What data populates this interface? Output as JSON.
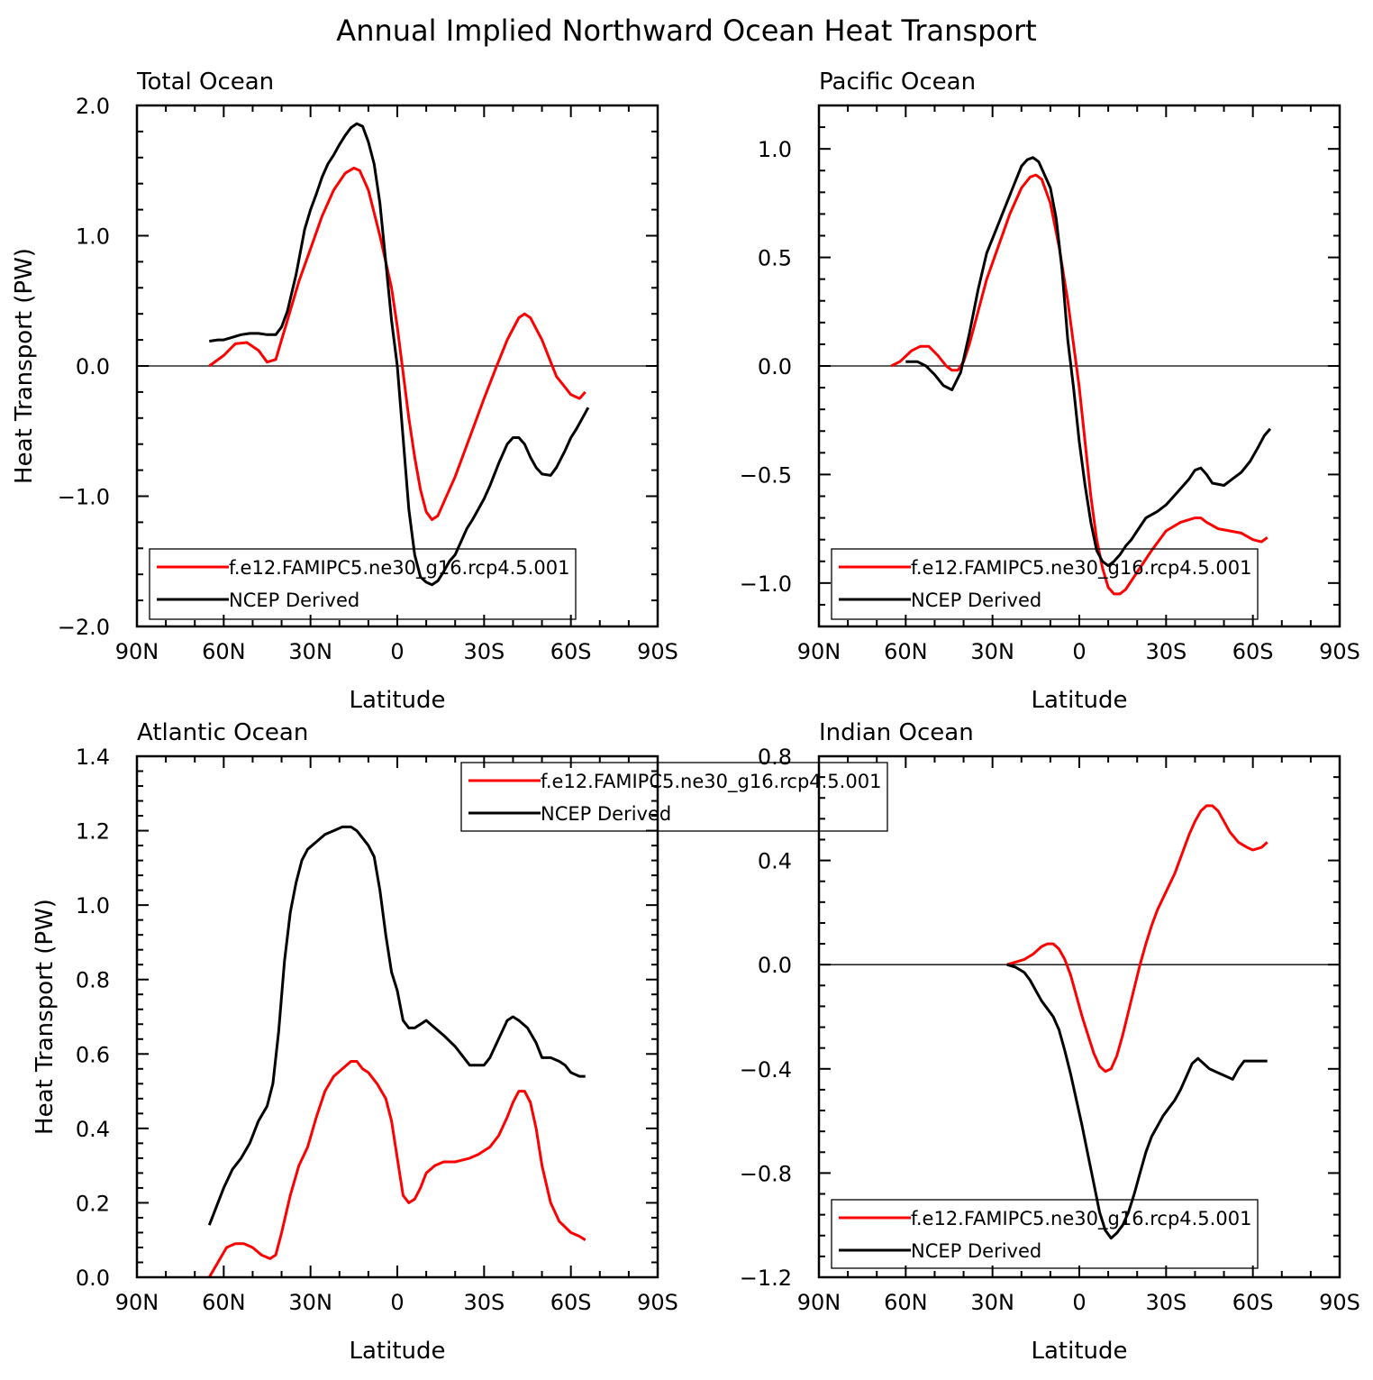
{
  "figure_title": "Annual Implied Northward Ocean Heat Transport",
  "chart_data": [
    {
      "type": "line",
      "title": "Total Ocean",
      "xlabel": "Latitude",
      "ylabel": "Heat Transport (PW)",
      "xlim": [
        90,
        -90
      ],
      "ylim": [
        -2.0,
        2.0
      ],
      "xticks": [
        90,
        60,
        30,
        0,
        -30,
        -60,
        -90
      ],
      "xtick_labels": [
        "90N",
        "60N",
        "30N",
        "0",
        "30S",
        "60S",
        "90S"
      ],
      "yticks": [
        -2.0,
        -1.0,
        0.0,
        1.0,
        2.0
      ],
      "ytick_labels": [
        "−2.0",
        "−1.0",
        "0.0",
        "1.0",
        "2.0"
      ],
      "zero_line": true,
      "legend_position": "bottom-left",
      "series": [
        {
          "name": "f.e12.FAMIPC5.ne30_g16.rcp4.5.001",
          "color": "#ff0000",
          "x": [
            65,
            60,
            56,
            52,
            48,
            45,
            42,
            38,
            34,
            30,
            26,
            22,
            18,
            15,
            13,
            10,
            6,
            2,
            0,
            -2,
            -4,
            -6,
            -8,
            -10,
            -12,
            -14,
            -16,
            -20,
            -25,
            -30,
            -34,
            -38,
            -42,
            -44,
            -46,
            -50,
            -55,
            -60,
            -63,
            -65
          ],
          "y": [
            0.0,
            0.08,
            0.17,
            0.18,
            0.12,
            0.03,
            0.05,
            0.35,
            0.65,
            0.9,
            1.15,
            1.35,
            1.48,
            1.52,
            1.5,
            1.35,
            1.0,
            0.6,
            0.3,
            -0.05,
            -0.4,
            -0.7,
            -0.95,
            -1.12,
            -1.18,
            -1.15,
            -1.05,
            -0.85,
            -0.55,
            -0.25,
            -0.02,
            0.2,
            0.37,
            0.4,
            0.37,
            0.2,
            -0.08,
            -0.22,
            -0.25,
            -0.2
          ]
        },
        {
          "name": "NCEP Derived",
          "color": "#000000",
          "x": [
            65,
            62,
            60,
            57,
            54,
            51,
            48,
            45,
            42,
            40,
            38,
            35,
            32,
            30,
            28,
            26,
            24,
            22,
            20,
            18,
            16,
            14,
            12,
            10,
            8,
            6,
            4,
            2,
            0,
            -2,
            -4,
            -6,
            -8,
            -10,
            -12,
            -14,
            -16,
            -18,
            -20,
            -22,
            -24,
            -26,
            -28,
            -30,
            -32,
            -35,
            -38,
            -40,
            -42,
            -44,
            -46,
            -48,
            -50,
            -53,
            -55,
            -58,
            -60,
            -62,
            -64,
            -66
          ],
          "y": [
            0.19,
            0.2,
            0.2,
            0.22,
            0.24,
            0.25,
            0.25,
            0.24,
            0.24,
            0.3,
            0.42,
            0.7,
            1.05,
            1.2,
            1.32,
            1.45,
            1.55,
            1.62,
            1.7,
            1.77,
            1.83,
            1.86,
            1.84,
            1.72,
            1.55,
            1.25,
            0.8,
            0.35,
            0.0,
            -0.55,
            -1.1,
            -1.45,
            -1.62,
            -1.66,
            -1.68,
            -1.65,
            -1.58,
            -1.5,
            -1.45,
            -1.35,
            -1.25,
            -1.18,
            -1.1,
            -1.02,
            -0.92,
            -0.75,
            -0.6,
            -0.55,
            -0.55,
            -0.6,
            -0.7,
            -0.78,
            -0.83,
            -0.84,
            -0.78,
            -0.65,
            -0.55,
            -0.48,
            -0.4,
            -0.32
          ]
        }
      ]
    },
    {
      "type": "line",
      "title": "Pacific Ocean",
      "xlabel": "Latitude",
      "ylabel": "",
      "xlim": [
        90,
        -90
      ],
      "ylim": [
        -1.2,
        1.2
      ],
      "xticks": [
        90,
        60,
        30,
        0,
        -30,
        -60,
        -90
      ],
      "xtick_labels": [
        "90N",
        "60N",
        "30N",
        "0",
        "30S",
        "60S",
        "90S"
      ],
      "yticks": [
        -1.0,
        -0.5,
        0.0,
        0.5,
        1.0
      ],
      "ytick_labels": [
        "−1.0",
        "−0.5",
        "0.0",
        "0.5",
        "1.0"
      ],
      "zero_line": true,
      "legend_position": "bottom-left",
      "series": [
        {
          "name": "f.e12.FAMIPC5.ne30_g16.rcp4.5.001",
          "color": "#ff0000",
          "x": [
            65,
            62,
            58,
            55,
            52,
            49,
            46,
            44,
            42,
            40,
            38,
            35,
            32,
            28,
            24,
            20,
            17,
            15,
            13,
            10,
            7,
            4,
            2,
            0,
            -2,
            -4,
            -6,
            -8,
            -10,
            -12,
            -14,
            -16,
            -20,
            -25,
            -30,
            -35,
            -40,
            -42,
            -44,
            -48,
            -52,
            -56,
            -60,
            -63,
            -65
          ],
          "y": [
            0.0,
            0.02,
            0.07,
            0.09,
            0.09,
            0.05,
            0.0,
            -0.02,
            -0.02,
            0.02,
            0.1,
            0.25,
            0.4,
            0.55,
            0.7,
            0.82,
            0.87,
            0.88,
            0.86,
            0.75,
            0.55,
            0.3,
            0.1,
            -0.1,
            -0.35,
            -0.6,
            -0.8,
            -0.93,
            -1.02,
            -1.05,
            -1.05,
            -1.03,
            -0.95,
            -0.85,
            -0.76,
            -0.72,
            -0.7,
            -0.7,
            -0.72,
            -0.75,
            -0.76,
            -0.77,
            -0.8,
            -0.81,
            -0.79
          ]
        },
        {
          "name": "NCEP Derived",
          "color": "#000000",
          "x": [
            60,
            56,
            53,
            50,
            47,
            44,
            41,
            38,
            35,
            32,
            29,
            26,
            23,
            20,
            18,
            16,
            14,
            12,
            10,
            8,
            6,
            4,
            2,
            0,
            -2,
            -4,
            -6,
            -8,
            -10,
            -12,
            -14,
            -16,
            -18,
            -20,
            -23,
            -27,
            -30,
            -34,
            -38,
            -40,
            -42,
            -44,
            -46,
            -50,
            -53,
            -56,
            -59,
            -62,
            -64,
            -66
          ],
          "y": [
            0.02,
            0.02,
            0.0,
            -0.04,
            -0.09,
            -0.11,
            -0.03,
            0.15,
            0.35,
            0.52,
            0.62,
            0.72,
            0.82,
            0.92,
            0.95,
            0.96,
            0.94,
            0.88,
            0.82,
            0.68,
            0.45,
            0.12,
            -0.1,
            -0.35,
            -0.55,
            -0.72,
            -0.85,
            -0.9,
            -0.92,
            -0.9,
            -0.87,
            -0.83,
            -0.8,
            -0.76,
            -0.7,
            -0.67,
            -0.64,
            -0.58,
            -0.52,
            -0.48,
            -0.47,
            -0.5,
            -0.54,
            -0.55,
            -0.52,
            -0.49,
            -0.44,
            -0.37,
            -0.32,
            -0.29
          ]
        }
      ]
    },
    {
      "type": "line",
      "title": "Atlantic Ocean",
      "xlabel": "Latitude",
      "ylabel": "Heat Transport (PW)",
      "xlim": [
        90,
        -90
      ],
      "ylim": [
        0.0,
        1.4
      ],
      "xticks": [
        90,
        60,
        30,
        0,
        -30,
        -60,
        -90
      ],
      "xtick_labels": [
        "90N",
        "60N",
        "30N",
        "0",
        "30S",
        "60S",
        "90S"
      ],
      "yticks": [
        0.0,
        0.2,
        0.4,
        0.6,
        0.8,
        1.0,
        1.2,
        1.4
      ],
      "ytick_labels": [
        "0.0",
        "0.2",
        "0.4",
        "0.6",
        "0.8",
        "1.0",
        "1.2",
        "1.4"
      ],
      "zero_line": false,
      "legend_position": "top-right",
      "series": [
        {
          "name": "f.e12.FAMIPC5.ne30_g16.rcp4.5.001",
          "color": "#ff0000",
          "x": [
            65,
            62,
            59,
            56,
            53,
            50,
            47,
            44,
            42,
            40,
            37,
            34,
            31,
            28,
            25,
            22,
            19,
            16,
            14,
            12,
            10,
            7,
            4,
            2,
            0,
            -2,
            -4,
            -6,
            -8,
            -10,
            -13,
            -16,
            -20,
            -25,
            -28,
            -32,
            -35,
            -38,
            -40,
            -42,
            -44,
            -46,
            -48,
            -50,
            -53,
            -56,
            -60,
            -63,
            -65
          ],
          "y": [
            0.0,
            0.04,
            0.08,
            0.09,
            0.09,
            0.08,
            0.06,
            0.05,
            0.06,
            0.12,
            0.22,
            0.3,
            0.35,
            0.43,
            0.5,
            0.54,
            0.56,
            0.58,
            0.58,
            0.56,
            0.55,
            0.52,
            0.48,
            0.42,
            0.32,
            0.22,
            0.2,
            0.21,
            0.24,
            0.28,
            0.3,
            0.31,
            0.31,
            0.32,
            0.33,
            0.35,
            0.38,
            0.43,
            0.47,
            0.5,
            0.5,
            0.47,
            0.4,
            0.3,
            0.2,
            0.15,
            0.12,
            0.11,
            0.1
          ]
        },
        {
          "name": "NCEP Derived",
          "color": "#000000",
          "x": [
            65,
            63,
            60,
            57,
            54,
            51,
            48,
            45,
            43,
            41,
            39,
            37,
            35,
            33,
            31,
            28,
            25,
            22,
            19,
            16,
            14,
            12,
            10,
            8,
            6,
            4,
            2,
            0,
            -2,
            -4,
            -6,
            -8,
            -10,
            -13,
            -16,
            -20,
            -23,
            -25,
            -27,
            -30,
            -32,
            -35,
            -38,
            -40,
            -42,
            -45,
            -48,
            -50,
            -53,
            -56,
            -58,
            -60,
            -63,
            -65
          ],
          "y": [
            0.14,
            0.18,
            0.24,
            0.29,
            0.32,
            0.36,
            0.42,
            0.46,
            0.52,
            0.66,
            0.85,
            0.98,
            1.06,
            1.12,
            1.15,
            1.17,
            1.19,
            1.2,
            1.21,
            1.21,
            1.2,
            1.18,
            1.16,
            1.13,
            1.04,
            0.92,
            0.82,
            0.77,
            0.69,
            0.67,
            0.67,
            0.68,
            0.69,
            0.67,
            0.65,
            0.62,
            0.59,
            0.57,
            0.57,
            0.57,
            0.59,
            0.64,
            0.69,
            0.7,
            0.69,
            0.67,
            0.63,
            0.59,
            0.59,
            0.58,
            0.57,
            0.55,
            0.54,
            0.54
          ]
        }
      ]
    },
    {
      "type": "line",
      "title": "Indian Ocean",
      "xlabel": "Latitude",
      "ylabel": "",
      "xlim": [
        90,
        -90
      ],
      "ylim": [
        -1.2,
        0.8
      ],
      "xticks": [
        90,
        60,
        30,
        0,
        -30,
        -60,
        -90
      ],
      "xtick_labels": [
        "90N",
        "60N",
        "30N",
        "0",
        "30S",
        "60S",
        "90S"
      ],
      "yticks": [
        -1.2,
        -0.8,
        -0.4,
        0.0,
        0.4,
        0.8
      ],
      "ytick_labels": [
        "−1.2",
        "−0.8",
        "−0.4",
        "0.0",
        "0.4",
        "0.8"
      ],
      "zero_line": true,
      "legend_position": "bottom-left",
      "series": [
        {
          "name": "f.e12.FAMIPC5.ne30_g16.rcp4.5.001",
          "color": "#ff0000",
          "x": [
            25,
            22,
            19,
            16,
            13,
            11,
            9,
            7,
            5,
            3,
            1,
            -1,
            -3,
            -5,
            -7,
            -9,
            -11,
            -13,
            -15,
            -17,
            -19,
            -21,
            -23,
            -25,
            -27,
            -30,
            -33,
            -36,
            -38,
            -40,
            -42,
            -44,
            -46,
            -48,
            -50,
            -52,
            -55,
            -58,
            -60,
            -63,
            -65
          ],
          "y": [
            0.0,
            0.01,
            0.02,
            0.04,
            0.07,
            0.08,
            0.08,
            0.06,
            0.02,
            -0.04,
            -0.12,
            -0.2,
            -0.27,
            -0.34,
            -0.39,
            -0.41,
            -0.4,
            -0.35,
            -0.27,
            -0.18,
            -0.09,
            0.0,
            0.08,
            0.15,
            0.21,
            0.28,
            0.35,
            0.44,
            0.5,
            0.55,
            0.59,
            0.61,
            0.61,
            0.59,
            0.55,
            0.51,
            0.47,
            0.45,
            0.44,
            0.45,
            0.47
          ]
        },
        {
          "name": "NCEP Derived",
          "color": "#000000",
          "x": [
            25,
            22,
            19,
            17,
            15,
            13,
            11,
            9,
            7,
            5,
            3,
            1,
            -1,
            -3,
            -5,
            -7,
            -9,
            -11,
            -13,
            -15,
            -17,
            -19,
            -21,
            -23,
            -25,
            -27,
            -29,
            -31,
            -33,
            -35,
            -37,
            -39,
            -41,
            -43,
            -45,
            -47,
            -49,
            -51,
            -53,
            -55,
            -57,
            -59,
            -61,
            -63,
            -65
          ],
          "y": [
            0.0,
            -0.01,
            -0.03,
            -0.06,
            -0.1,
            -0.14,
            -0.17,
            -0.2,
            -0.25,
            -0.33,
            -0.42,
            -0.52,
            -0.62,
            -0.73,
            -0.84,
            -0.95,
            -1.02,
            -1.05,
            -1.03,
            -1.0,
            -0.95,
            -0.88,
            -0.8,
            -0.72,
            -0.66,
            -0.62,
            -0.58,
            -0.55,
            -0.52,
            -0.48,
            -0.43,
            -0.38,
            -0.36,
            -0.38,
            -0.4,
            -0.41,
            -0.42,
            -0.43,
            -0.44,
            -0.4,
            -0.37,
            -0.37,
            -0.37,
            -0.37,
            -0.37
          ]
        }
      ]
    }
  ]
}
